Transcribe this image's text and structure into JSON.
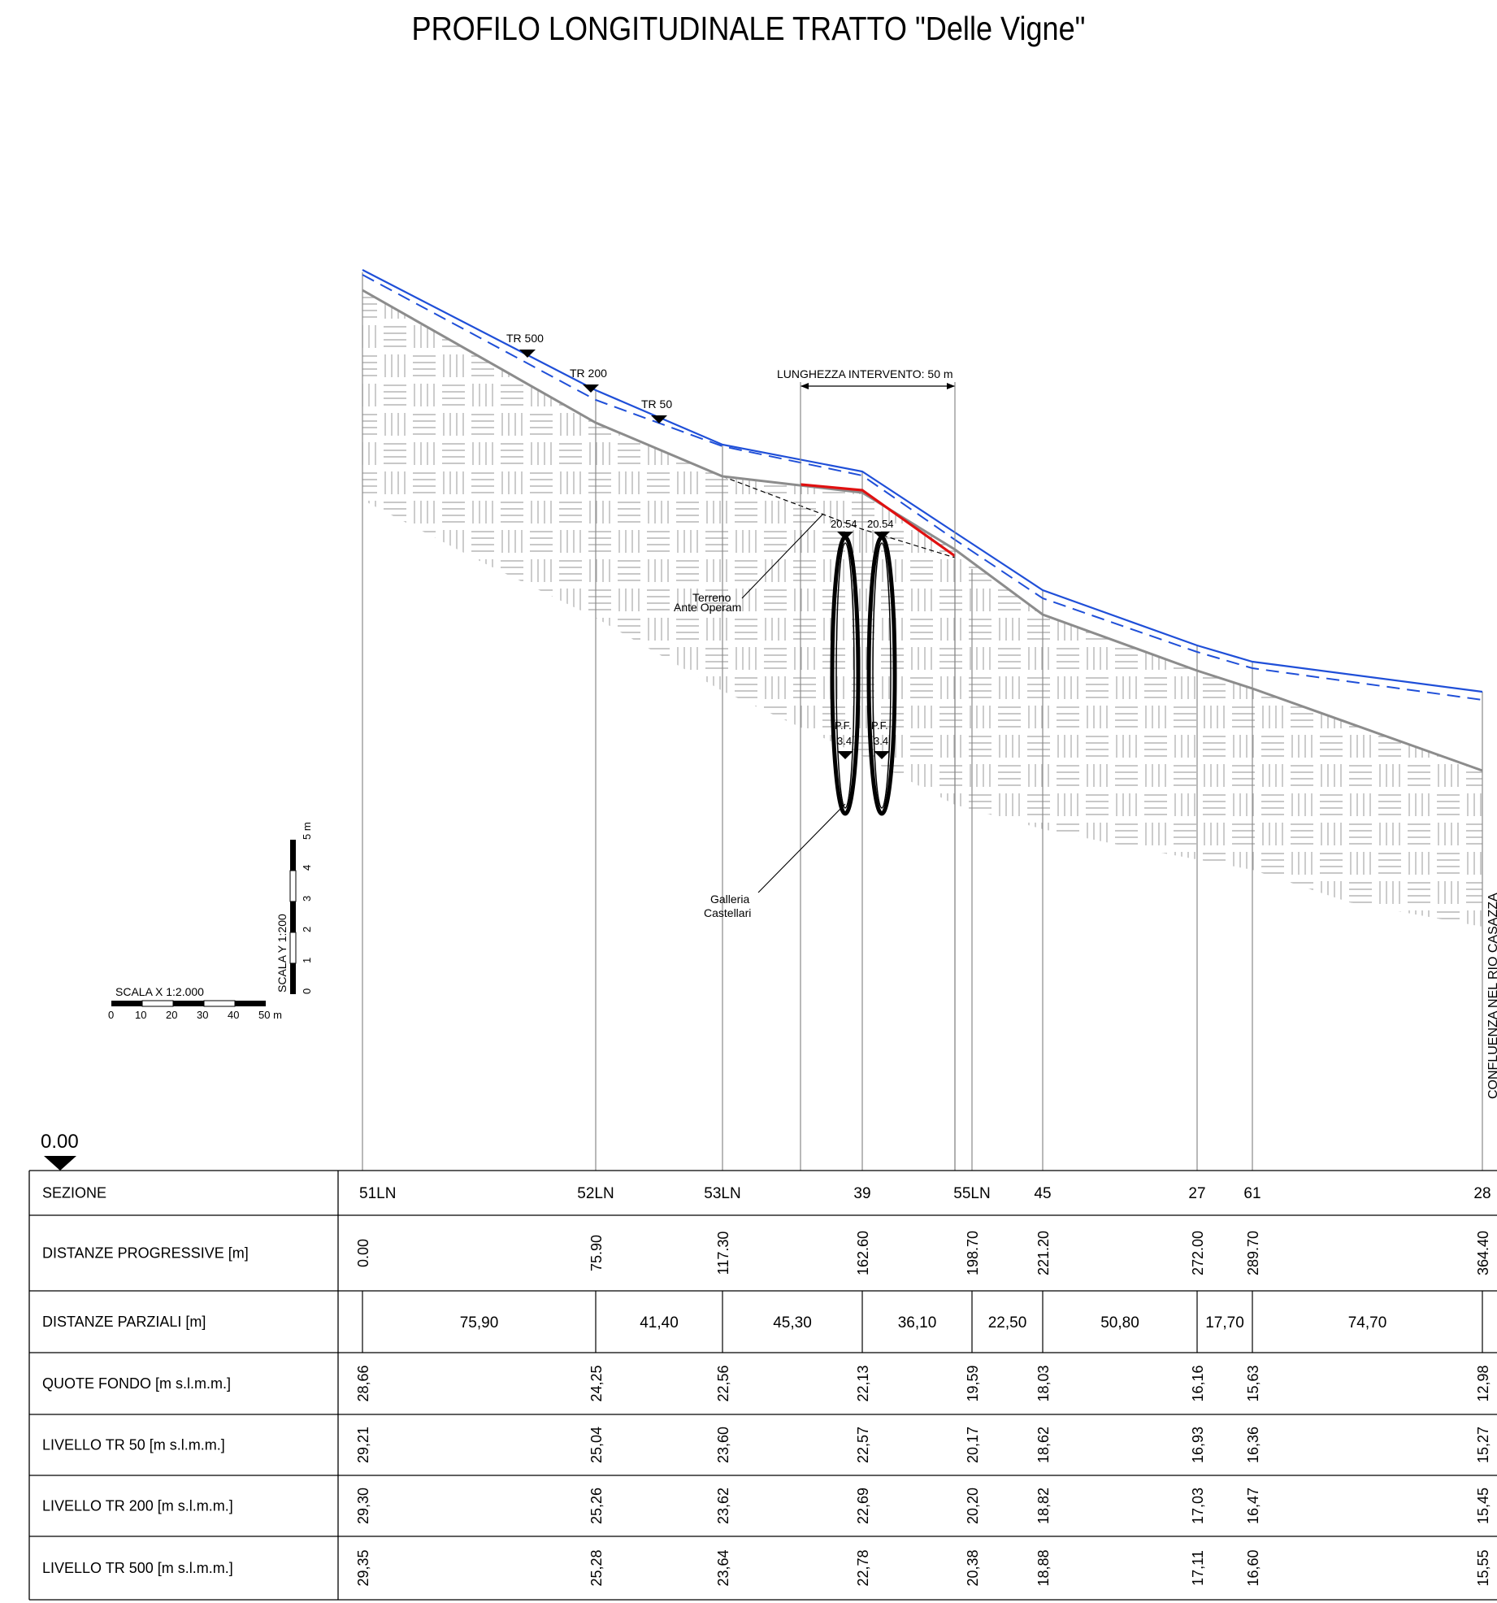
{
  "title": "PROFILO LONGITUDINALE TRATTO \"Delle Vigne\"",
  "datum_label": "0.00",
  "tr_labels": {
    "tr500": "TR 500",
    "tr200": "TR 200",
    "tr50": "TR 50"
  },
  "intervention_label": "LUNGHEZZA INTERVENTO: 50 m",
  "annotations": {
    "terreno_line1": "Terreno",
    "terreno_line2": "Ante Operam",
    "galleria_line1": "Galleria",
    "galleria_line2": "Castellari",
    "confluenza": "CONFLUENZA NEL RIO CASAZZA",
    "pipe_top_left": "20.54",
    "pipe_top_right": "20.54",
    "pf_left_1": "P.F.",
    "pf_left_2": "3.4",
    "pf_right_1": "P.F.",
    "pf_right_2": "3.4"
  },
  "scale_x": {
    "label": "SCALA X  1:2.000",
    "ticks": [
      "0",
      "10",
      "20",
      "30",
      "40",
      "50 m"
    ]
  },
  "scale_y": {
    "label": "SCALA Y  1:200",
    "ticks": [
      "0",
      "1",
      "2",
      "3",
      "4",
      "5 m"
    ]
  },
  "colors": {
    "terrain": "#8c8c8c",
    "levels": "#1f4fd8",
    "intervention": "#e01010",
    "hatch": "#b5b5b5"
  },
  "table": {
    "row_labels": [
      "SEZIONE",
      "DISTANZE PROGRESSIVE [m]",
      "DISTANZE PARZIALI [m]",
      "QUOTE FONDO [m s.l.m.m.]",
      "LIVELLO TR 50 [m s.l.m.m.]",
      "LIVELLO TR 200 [m s.l.m.m.]",
      "LIVELLO TR 500 [m s.l.m.m.]"
    ],
    "sections": [
      "51LN",
      "52LN",
      "53LN",
      "39",
      "55LN",
      "45",
      "27",
      "61",
      "28"
    ],
    "progressive": [
      "0.00",
      "75.90",
      "117.30",
      "162.60",
      "198.70",
      "221.20",
      "272.00",
      "289.70",
      "364.40"
    ],
    "partial": [
      "75,90",
      "41,40",
      "45,30",
      "36,10",
      "22,50",
      "50,80",
      "17,70",
      "74,70"
    ],
    "quote_fondo": [
      "28,66",
      "24,25",
      "22,56",
      "22,13",
      "19,59",
      "18,03",
      "16,16",
      "15,63",
      "12,98"
    ],
    "tr50": [
      "29,21",
      "25,04",
      "23,60",
      "22,57",
      "20,17",
      "18,62",
      "16,93",
      "16,36",
      "15,27"
    ],
    "tr200": [
      "29,30",
      "25,26",
      "23,62",
      "22,69",
      "20,20",
      "18,82",
      "17,03",
      "16,47",
      "15,45"
    ],
    "tr500": [
      "29,35",
      "25,28",
      "23,64",
      "22,78",
      "20,38",
      "18,88",
      "17,11",
      "16,60",
      "15,55"
    ]
  }
}
